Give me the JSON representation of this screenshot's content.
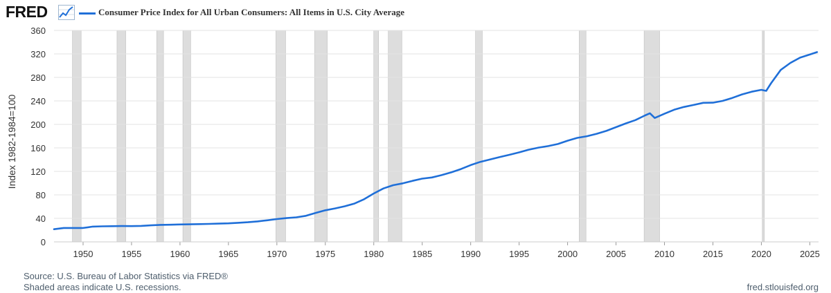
{
  "header": {
    "logo_text": "FRED",
    "logo_icon": "line-chart-icon",
    "legend_label": "Consumer Price Index for All Urban Consumers: All Items in U.S. City Average",
    "series_color": "#1f6fd8"
  },
  "footer": {
    "source": "U.S. Bureau of Labor Statistics via FRED®",
    "source_prefix": "Source: ",
    "recession_note": "Shaded areas indicate U.S. recessions.",
    "site": "fred.stlouisfed.org"
  },
  "chart_data": {
    "type": "line",
    "title": "",
    "ylabel": "Index 1982-1984=100",
    "xlabel": "",
    "xlim": [
      1947,
      2025.9
    ],
    "ylim": [
      0,
      360
    ],
    "y_ticks": [
      0,
      40,
      80,
      120,
      160,
      200,
      240,
      280,
      320,
      360
    ],
    "x_ticks": [
      1950,
      1955,
      1960,
      1965,
      1970,
      1975,
      1980,
      1985,
      1990,
      1995,
      2000,
      2005,
      2010,
      2015,
      2020,
      2025
    ],
    "grid": true,
    "legend_position": "top-left",
    "recession_color": "#dddddd",
    "recessions": [
      [
        1948.9,
        1949.8
      ],
      [
        1953.5,
        1954.4
      ],
      [
        1957.6,
        1958.3
      ],
      [
        1960.3,
        1961.1
      ],
      [
        1969.9,
        1970.9
      ],
      [
        1973.9,
        1975.2
      ],
      [
        1980.0,
        1980.5
      ],
      [
        1981.5,
        1982.9
      ],
      [
        1990.5,
        1991.2
      ],
      [
        2001.2,
        2001.9
      ],
      [
        2007.9,
        2009.5
      ],
      [
        2020.1,
        2020.3
      ]
    ],
    "series": [
      {
        "color": "#1f6fd8",
        "x": [
          1947,
          1948,
          1949,
          1950,
          1951,
          1952,
          1953,
          1954,
          1955,
          1956,
          1957,
          1958,
          1959,
          1960,
          1961,
          1962,
          1963,
          1964,
          1965,
          1966,
          1967,
          1968,
          1969,
          1970,
          1971,
          1972,
          1973,
          1974,
          1975,
          1976,
          1977,
          1978,
          1979,
          1980,
          1981,
          1982,
          1983,
          1984,
          1985,
          1986,
          1987,
          1988,
          1989,
          1990,
          1991,
          1992,
          1993,
          1994,
          1995,
          1996,
          1997,
          1998,
          1999,
          2000,
          2001,
          2002,
          2003,
          2004,
          2005,
          2006,
          2007,
          2008,
          2008.5,
          2009,
          2010,
          2011,
          2012,
          2013,
          2014,
          2015,
          2016,
          2017,
          2018,
          2019,
          2020,
          2020.5,
          2021,
          2022,
          2023,
          2024,
          2025,
          2025.75
        ],
        "y": [
          21.5,
          23.7,
          23.6,
          23.6,
          26.0,
          26.5,
          26.7,
          26.9,
          26.8,
          27.2,
          28.1,
          28.9,
          29.2,
          29.6,
          29.9,
          30.2,
          30.6,
          31.0,
          31.5,
          32.5,
          33.4,
          34.8,
          36.7,
          38.8,
          40.5,
          41.8,
          44.4,
          49.3,
          53.8,
          56.9,
          60.6,
          65.2,
          72.6,
          82.4,
          90.9,
          96.5,
          99.6,
          103.9,
          107.6,
          109.6,
          113.6,
          118.3,
          124.0,
          130.7,
          136.2,
          140.3,
          144.5,
          148.2,
          152.4,
          156.9,
          160.5,
          163.0,
          166.6,
          172.2,
          177.1,
          179.9,
          184.0,
          188.9,
          195.3,
          201.6,
          207.3,
          215.3,
          219.0,
          211.0,
          218.1,
          224.9,
          229.6,
          233.0,
          236.7,
          237.0,
          240.0,
          245.1,
          251.1,
          255.7,
          258.8,
          257.0,
          270.0,
          292.7,
          304.7,
          313.7,
          319.0,
          323.0
        ]
      }
    ]
  }
}
